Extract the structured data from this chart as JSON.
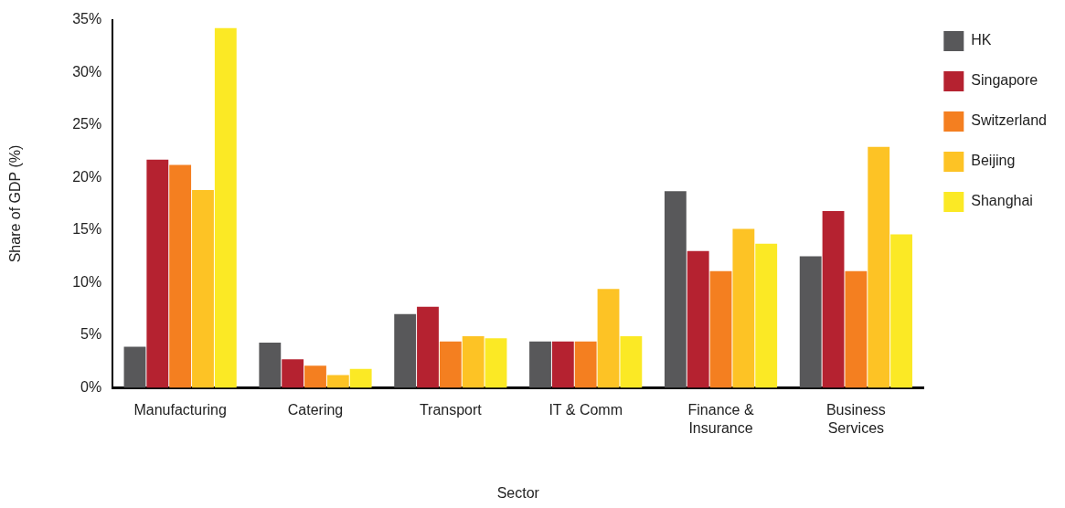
{
  "chart_data": {
    "type": "bar",
    "xlabel": "Sector",
    "ylabel": "Share of GDP (%)",
    "categories": [
      "Manufacturing",
      "Catering",
      "Transport",
      "IT & Comm",
      "Finance &\nInsurance",
      "Business\nServices"
    ],
    "series": [
      {
        "name": "HK",
        "color": "#58585a",
        "values": [
          3.9,
          4.3,
          7.0,
          4.4,
          18.7,
          12.5
        ]
      },
      {
        "name": "Singapore",
        "color": "#b52230",
        "values": [
          21.7,
          2.7,
          7.7,
          4.4,
          13.0,
          16.8
        ]
      },
      {
        "name": "Switzerland",
        "color": "#f47f20",
        "values": [
          21.2,
          2.1,
          4.4,
          4.4,
          11.1,
          11.1
        ]
      },
      {
        "name": "Beijing",
        "color": "#fdc325",
        "values": [
          18.8,
          1.2,
          4.9,
          9.4,
          15.1,
          22.9
        ]
      },
      {
        "name": "Shanghai",
        "color": "#fbe925",
        "values": [
          34.2,
          1.8,
          4.7,
          4.9,
          13.7,
          14.6
        ]
      }
    ],
    "ylim": [
      0,
      35
    ],
    "yticks": [
      {
        "value": 0,
        "label": "0%"
      },
      {
        "value": 5,
        "label": "5%"
      },
      {
        "value": 10,
        "label": "10%"
      },
      {
        "value": 15,
        "label": "15%"
      },
      {
        "value": 20,
        "label": "20%"
      },
      {
        "value": 25,
        "label": "25%"
      },
      {
        "value": 30,
        "label": "30%"
      },
      {
        "value": 35,
        "label": "35%"
      }
    ],
    "grid": false,
    "legend": "right"
  }
}
